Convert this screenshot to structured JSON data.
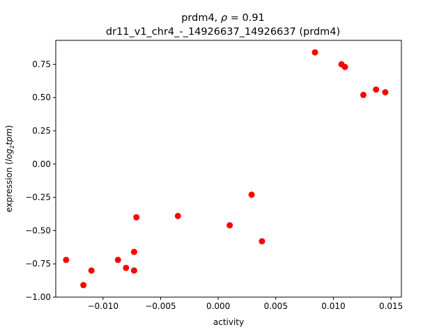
{
  "chart_data": {
    "type": "scatter",
    "title": {
      "line1_prefix": "prdm4, ",
      "line1_rho": "ρ",
      "line1_suffix": " = 0.91",
      "line2": "dr11_v1_chr4_-_14926637_14926637 (prdm4)"
    },
    "xlabel": "activity",
    "ylabel": {
      "prefix": "expression (",
      "log": "log",
      "sub": "2",
      "tpm": "tpm",
      "suffix": ")"
    },
    "xlim": [
      -0.0141,
      0.0159
    ],
    "ylim": [
      -1.0,
      0.93
    ],
    "xticks": [
      {
        "value": -0.01,
        "label": "−0.010"
      },
      {
        "value": -0.005,
        "label": "−0.005"
      },
      {
        "value": 0.0,
        "label": "0.000"
      },
      {
        "value": 0.005,
        "label": "0.005"
      },
      {
        "value": 0.01,
        "label": "0.010"
      },
      {
        "value": 0.015,
        "label": "0.015"
      }
    ],
    "yticks": [
      {
        "value": -1.0,
        "label": "−1.00"
      },
      {
        "value": -0.75,
        "label": "−0.75"
      },
      {
        "value": -0.5,
        "label": "−0.50"
      },
      {
        "value": -0.25,
        "label": "−0.25"
      },
      {
        "value": 0.0,
        "label": "0.00"
      },
      {
        "value": 0.25,
        "label": "0.25"
      },
      {
        "value": 0.5,
        "label": "0.50"
      },
      {
        "value": 0.75,
        "label": "0.75"
      }
    ],
    "grid": false,
    "marker_color": "#ff0000",
    "points": [
      {
        "x": -0.0132,
        "y": -0.72
      },
      {
        "x": -0.0117,
        "y": -0.91
      },
      {
        "x": -0.011,
        "y": -0.8
      },
      {
        "x": -0.0087,
        "y": -0.72
      },
      {
        "x": -0.008,
        "y": -0.78
      },
      {
        "x": -0.0073,
        "y": -0.8
      },
      {
        "x": -0.0073,
        "y": -0.66
      },
      {
        "x": -0.0071,
        "y": -0.4
      },
      {
        "x": -0.0035,
        "y": -0.39
      },
      {
        "x": 0.001,
        "y": -0.46
      },
      {
        "x": 0.0029,
        "y": -0.23
      },
      {
        "x": 0.0038,
        "y": -0.58
      },
      {
        "x": 0.0084,
        "y": 0.84
      },
      {
        "x": 0.0107,
        "y": 0.75
      },
      {
        "x": 0.011,
        "y": 0.73
      },
      {
        "x": 0.0126,
        "y": 0.52
      },
      {
        "x": 0.0137,
        "y": 0.56
      },
      {
        "x": 0.0145,
        "y": 0.54
      }
    ]
  }
}
